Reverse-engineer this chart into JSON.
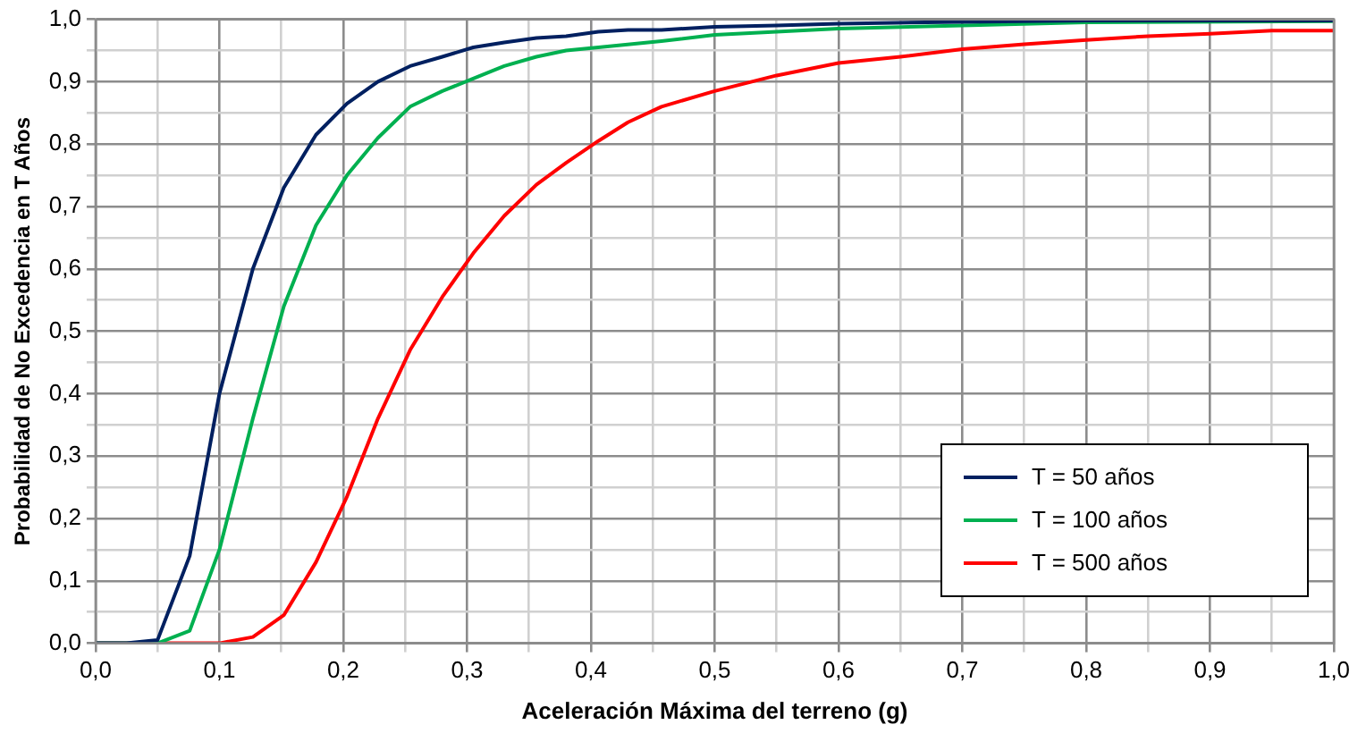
{
  "chart_data": {
    "type": "line",
    "xlabel": "Aceleración Máxima del terreno (g)",
    "ylabel": "Probabilidad de No Excedencia en T Años",
    "xlim": [
      0,
      1
    ],
    "ylim": [
      0,
      1
    ],
    "xticks": [
      {
        "value": 0,
        "label": "0,0"
      },
      {
        "value": 0.05,
        "label": null
      },
      {
        "value": 0.1,
        "label": "0,1"
      },
      {
        "value": 0.15,
        "label": null
      },
      {
        "value": 0.2,
        "label": "0,2"
      },
      {
        "value": 0.25,
        "label": null
      },
      {
        "value": 0.3,
        "label": "0,3"
      },
      {
        "value": 0.35,
        "label": null
      },
      {
        "value": 0.4,
        "label": "0,4"
      },
      {
        "value": 0.45,
        "label": null
      },
      {
        "value": 0.5,
        "label": "0,5"
      },
      {
        "value": 0.55,
        "label": null
      },
      {
        "value": 0.6,
        "label": "0,6"
      },
      {
        "value": 0.65,
        "label": null
      },
      {
        "value": 0.7,
        "label": "0,7"
      },
      {
        "value": 0.75,
        "label": null
      },
      {
        "value": 0.8,
        "label": "0,8"
      },
      {
        "value": 0.85,
        "label": null
      },
      {
        "value": 0.9,
        "label": "0,9"
      },
      {
        "value": 0.95,
        "label": null
      },
      {
        "value": 1,
        "label": "1,0"
      }
    ],
    "yticks": [
      {
        "value": 0,
        "label": "0,0"
      },
      {
        "value": 0.05,
        "label": null
      },
      {
        "value": 0.1,
        "label": "0,1"
      },
      {
        "value": 0.15,
        "label": null
      },
      {
        "value": 0.2,
        "label": "0,2"
      },
      {
        "value": 0.25,
        "label": null
      },
      {
        "value": 0.3,
        "label": "0,3"
      },
      {
        "value": 0.35,
        "label": null
      },
      {
        "value": 0.4,
        "label": "0,4"
      },
      {
        "value": 0.45,
        "label": null
      },
      {
        "value": 0.5,
        "label": "0,5"
      },
      {
        "value": 0.55,
        "label": null
      },
      {
        "value": 0.6,
        "label": "0,6"
      },
      {
        "value": 0.65,
        "label": null
      },
      {
        "value": 0.7,
        "label": "0,7"
      },
      {
        "value": 0.75,
        "label": null
      },
      {
        "value": 0.8,
        "label": "0,8"
      },
      {
        "value": 0.85,
        "label": null
      },
      {
        "value": 0.9,
        "label": "0,9"
      },
      {
        "value": 0.95,
        "label": null
      },
      {
        "value": 1,
        "label": "1,0"
      }
    ],
    "grid": true,
    "legend": "bottom right",
    "marker": "none",
    "line_style": "solid",
    "series": [
      {
        "name": "T = 50 años",
        "color": "#002060",
        "x": [
          0,
          0.025,
          0.05,
          0.076,
          0.1,
          0.127,
          0.152,
          0.178,
          0.203,
          0.228,
          0.254,
          0.28,
          0.305,
          0.33,
          0.356,
          0.38,
          0.406,
          0.43,
          0.457,
          0.5,
          0.55,
          0.6,
          0.7,
          0.8,
          1
        ],
        "values": [
          0,
          0,
          0.005,
          0.14,
          0.4,
          0.6,
          0.73,
          0.815,
          0.865,
          0.9,
          0.925,
          0.94,
          0.955,
          0.963,
          0.97,
          0.973,
          0.98,
          0.983,
          0.983,
          0.988,
          0.99,
          0.993,
          0.996,
          0.998,
          0.998
        ]
      },
      {
        "name": "T = 100 años",
        "color": "#00b050",
        "x": [
          0,
          0.025,
          0.05,
          0.076,
          0.1,
          0.127,
          0.152,
          0.178,
          0.203,
          0.228,
          0.254,
          0.28,
          0.305,
          0.33,
          0.356,
          0.38,
          0.406,
          0.457,
          0.5,
          0.6,
          0.7,
          0.8,
          1
        ],
        "values": [
          0,
          0,
          0,
          0.02,
          0.15,
          0.36,
          0.54,
          0.67,
          0.75,
          0.81,
          0.86,
          0.885,
          0.905,
          0.925,
          0.94,
          0.95,
          0.955,
          0.965,
          0.975,
          0.985,
          0.99,
          0.995,
          0.997
        ]
      },
      {
        "name": "T = 500 años",
        "color": "#ff0000",
        "x": [
          0,
          0.025,
          0.05,
          0.076,
          0.1,
          0.127,
          0.152,
          0.178,
          0.203,
          0.228,
          0.254,
          0.28,
          0.305,
          0.33,
          0.356,
          0.38,
          0.406,
          0.43,
          0.457,
          0.5,
          0.55,
          0.6,
          0.65,
          0.7,
          0.75,
          0.8,
          0.85,
          0.9,
          0.95,
          1
        ],
        "values": [
          0,
          0,
          0,
          0,
          0,
          0.01,
          0.045,
          0.13,
          0.235,
          0.36,
          0.47,
          0.555,
          0.625,
          0.685,
          0.735,
          0.77,
          0.805,
          0.835,
          0.86,
          0.885,
          0.91,
          0.93,
          0.94,
          0.952,
          0.96,
          0.967,
          0.973,
          0.977,
          0.982,
          0.982
        ]
      }
    ]
  }
}
